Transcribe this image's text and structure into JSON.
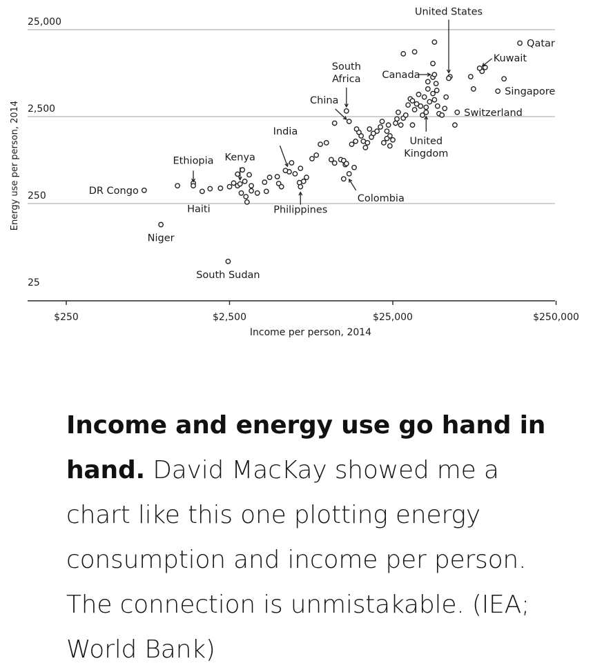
{
  "chart_data": {
    "type": "scatter",
    "x_scale": "log",
    "y_scale": "log",
    "xlabel": "Income per person, 2014",
    "ylabel": "Energy use per person, 2014",
    "xlim": [
      200,
      250000
    ],
    "ylim": [
      25,
      25000
    ],
    "x_ticks": [
      {
        "value": 250,
        "label": "$250"
      },
      {
        "value": 2500,
        "label": "$2,500"
      },
      {
        "value": 25000,
        "label": "$25,000"
      },
      {
        "value": 250000,
        "label": "$250,000"
      }
    ],
    "y_ticks": [
      {
        "value": 25,
        "label": "25"
      },
      {
        "value": 250,
        "label": "250"
      },
      {
        "value": 2500,
        "label": "2,500"
      },
      {
        "value": 25000,
        "label": "25,000"
      }
    ],
    "grid": "horizontal",
    "labeled_points": [
      {
        "name": "United States",
        "x": 55000,
        "y": 6900
      },
      {
        "name": "Qatar",
        "x": 150000,
        "y": 17500
      },
      {
        "name": "Kuwait",
        "x": 85000,
        "y": 9000
      },
      {
        "name": "Canada",
        "x": 45000,
        "y": 7600
      },
      {
        "name": "Singapore",
        "x": 110000,
        "y": 4900
      },
      {
        "name": "South Africa",
        "x": 13000,
        "y": 2900
      },
      {
        "name": "China",
        "x": 13500,
        "y": 2200
      },
      {
        "name": "Switzerland",
        "x": 62000,
        "y": 2800
      },
      {
        "name": "United Kingdom",
        "x": 40000,
        "y": 2800
      },
      {
        "name": "India",
        "x": 5500,
        "y": 600
      },
      {
        "name": "Kenya",
        "x": 2900,
        "y": 420
      },
      {
        "name": "Ethiopia",
        "x": 1500,
        "y": 400
      },
      {
        "name": "DR Congo",
        "x": 750,
        "y": 355
      },
      {
        "name": "Haiti",
        "x": 1700,
        "y": 345
      },
      {
        "name": "Philippines",
        "x": 6800,
        "y": 390
      },
      {
        "name": "Colombia",
        "x": 13500,
        "y": 550
      },
      {
        "name": "Niger",
        "x": 950,
        "y": 143
      },
      {
        "name": "South Sudan",
        "x": 2450,
        "y": 54
      }
    ],
    "points": [
      [
        1200,
        400
      ],
      [
        1500,
        430
      ],
      [
        1900,
        370
      ],
      [
        2200,
        375
      ],
      [
        2500,
        390
      ],
      [
        2650,
        430
      ],
      [
        2800,
        545
      ],
      [
        3000,
        610
      ],
      [
        3100,
        450
      ],
      [
        3300,
        535
      ],
      [
        3400,
        400
      ],
      [
        2800,
        400
      ],
      [
        2950,
        330
      ],
      [
        3400,
        350
      ],
      [
        3150,
        300
      ],
      [
        3200,
        260
      ],
      [
        3700,
        330
      ],
      [
        4200,
        345
      ],
      [
        4400,
        500
      ],
      [
        4100,
        440
      ],
      [
        4900,
        510
      ],
      [
        5000,
        425
      ],
      [
        5200,
        390
      ],
      [
        6000,
        735
      ],
      [
        6300,
        550
      ],
      [
        5800,
        580
      ],
      [
        6800,
        635
      ],
      [
        7400,
        500
      ],
      [
        7100,
        450
      ],
      [
        6700,
        435
      ],
      [
        8000,
        820
      ],
      [
        8500,
        900
      ],
      [
        9000,
        1200
      ],
      [
        9800,
        1250
      ],
      [
        10500,
        800
      ],
      [
        11000,
        730
      ],
      [
        12000,
        800
      ],
      [
        12800,
        700
      ],
      [
        12500,
        780
      ],
      [
        13000,
        720
      ],
      [
        14500,
        650
      ],
      [
        12500,
        480
      ],
      [
        11000,
        2100
      ],
      [
        14000,
        1200
      ],
      [
        14800,
        1300
      ],
      [
        16000,
        1500
      ],
      [
        15500,
        1650
      ],
      [
        16500,
        1300
      ],
      [
        17000,
        1100
      ],
      [
        17500,
        1250
      ],
      [
        18500,
        1450
      ],
      [
        20000,
        1700
      ],
      [
        21000,
        1900
      ],
      [
        21500,
        2200
      ],
      [
        22000,
        1250
      ],
      [
        24000,
        1500
      ],
      [
        25000,
        1350
      ],
      [
        23000,
        1700
      ],
      [
        23500,
        2000
      ],
      [
        24000,
        1150
      ],
      [
        26000,
        2100
      ],
      [
        27000,
        2800
      ],
      [
        26500,
        2350
      ],
      [
        28000,
        2000
      ],
      [
        29000,
        2400
      ],
      [
        30000,
        2600
      ],
      [
        31000,
        3400
      ],
      [
        32000,
        4000
      ],
      [
        33000,
        3800
      ],
      [
        34000,
        3000
      ],
      [
        35000,
        3500
      ],
      [
        36000,
        4500
      ],
      [
        38000,
        2600
      ],
      [
        39000,
        4200
      ],
      [
        40000,
        3200
      ],
      [
        41000,
        5200
      ],
      [
        42000,
        3700
      ],
      [
        44000,
        4600
      ],
      [
        45000,
        3900
      ],
      [
        46000,
        6000
      ],
      [
        46500,
        5000
      ],
      [
        47000,
        3300
      ],
      [
        48000,
        2700
      ],
      [
        50000,
        2600
      ],
      [
        52000,
        3100
      ],
      [
        53000,
        4200
      ],
      [
        56000,
        7200
      ],
      [
        60000,
        2000
      ],
      [
        75000,
        7200
      ],
      [
        78000,
        5200
      ],
      [
        88000,
        8300
      ],
      [
        92000,
        9200
      ],
      [
        120000,
        6800
      ],
      [
        29000,
        13200
      ],
      [
        34000,
        13900
      ],
      [
        45000,
        18000
      ],
      [
        44000,
        10200
      ],
      [
        23000,
        1400
      ],
      [
        19000,
        1600
      ],
      [
        18000,
        1800
      ],
      [
        33000,
        2000
      ],
      [
        37000,
        3300
      ],
      [
        15000,
        1800
      ],
      [
        44000,
        7100
      ],
      [
        41000,
        6300
      ]
    ]
  },
  "caption": {
    "lead": "Income and energy use go hand in hand.",
    "body": " David MacKay showed me a chart like this one plotting energy consumption and income per person. The connection is un­mistakable. (IEA; World Bank)"
  }
}
